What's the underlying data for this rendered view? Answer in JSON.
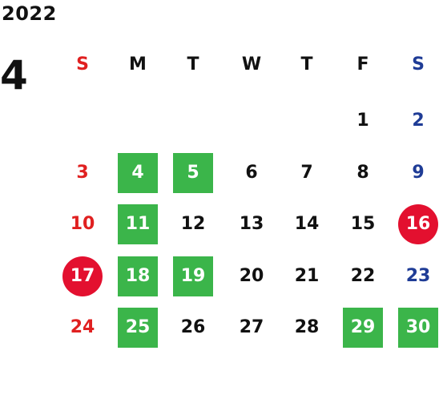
{
  "calendar": {
    "year": "2022",
    "month": "4",
    "weekdays": [
      "S",
      "M",
      "T",
      "W",
      "T",
      "F",
      "S"
    ],
    "colors": {
      "default_text": "#111111",
      "sunday": "#e02020",
      "saturday": "#1f3c96",
      "event_fill": "#3bb54a",
      "holiday_fill": "#e3102f",
      "highlight_text": "#ffffff"
    },
    "weeks": [
      [
        null,
        null,
        null,
        null,
        null,
        {
          "day": "1"
        },
        {
          "day": "2"
        }
      ],
      [
        {
          "day": "3"
        },
        {
          "day": "4",
          "mark": "event"
        },
        {
          "day": "5",
          "mark": "event"
        },
        {
          "day": "6"
        },
        {
          "day": "7"
        },
        {
          "day": "8"
        },
        {
          "day": "9"
        }
      ],
      [
        {
          "day": "10"
        },
        {
          "day": "11",
          "mark": "event"
        },
        {
          "day": "12"
        },
        {
          "day": "13"
        },
        {
          "day": "14"
        },
        {
          "day": "15"
        },
        {
          "day": "16",
          "mark": "holiday"
        }
      ],
      [
        {
          "day": "17",
          "mark": "holiday"
        },
        {
          "day": "18",
          "mark": "event"
        },
        {
          "day": "19",
          "mark": "event"
        },
        {
          "day": "20"
        },
        {
          "day": "21"
        },
        {
          "day": "22"
        },
        {
          "day": "23"
        }
      ],
      [
        {
          "day": "24"
        },
        {
          "day": "25",
          "mark": "event"
        },
        {
          "day": "26"
        },
        {
          "day": "27"
        },
        {
          "day": "28"
        },
        {
          "day": "29",
          "mark": "event"
        },
        {
          "day": "30",
          "mark": "event"
        }
      ]
    ]
  }
}
